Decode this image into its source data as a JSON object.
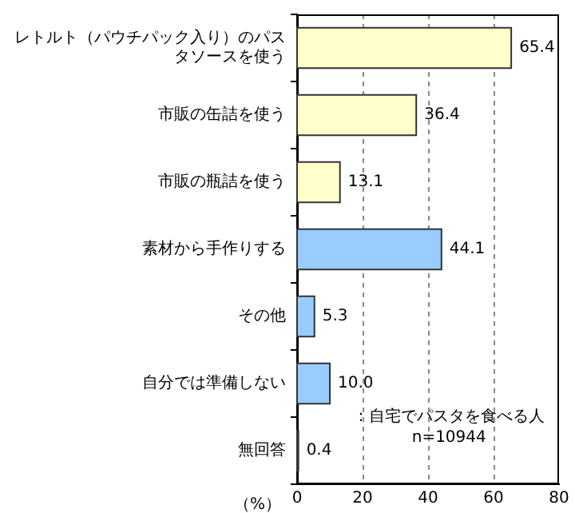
{
  "chart_data": {
    "type": "bar",
    "orientation": "horizontal",
    "xlabel": "（%）",
    "categories": [
      "レトルト（パウチパック入り）のパスタソースを使う",
      "市販の缶詰を使う",
      "市販の瓶詰を使う",
      "素材から手作りする",
      "その他",
      "自分では準備しない",
      "無回答"
    ],
    "values": [
      65.4,
      36.4,
      13.1,
      44.1,
      5.3,
      10.0,
      0.4
    ],
    "colors": [
      "#ffffcc",
      "#ffffcc",
      "#ffffcc",
      "#99ccff",
      "#99ccff",
      "#99ccff",
      "#99ccff"
    ],
    "value_labels": [
      "65.4",
      "36.4",
      "13.1",
      "44.1",
      "5.3",
      "10.0",
      "0.4"
    ],
    "xlim": [
      0,
      80
    ],
    "xticks": [
      0,
      20,
      40,
      60,
      80
    ],
    "grid": "x",
    "legend": false,
    "annotations": [
      "：自宅でパスタを食べる人",
      "n=10944"
    ]
  }
}
